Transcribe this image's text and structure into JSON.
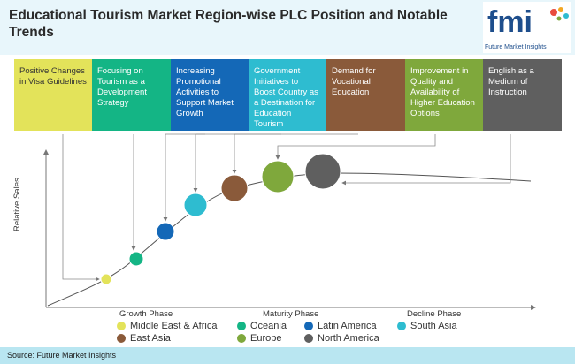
{
  "title": "Educational Tourism Market Region-wise PLC Position and Notable Trends",
  "logo": {
    "mark": "fmi",
    "tagline": "Future Market Insights"
  },
  "trends": [
    {
      "text": "Positive Changes in Visa Guidelines",
      "color": "#e3e35a",
      "text_color": "#333333"
    },
    {
      "text": "Focusing on Tourism as a Development Strategy",
      "color": "#14b585",
      "text_color": "#ffffff"
    },
    {
      "text": "Increasing Promotional Activities to Support Market Growth",
      "color": "#1468b7",
      "text_color": "#ffffff"
    },
    {
      "text": "Government Initiatives to Boost Country as a Destination for Education Tourism",
      "color": "#2ebcd0",
      "text_color": "#ffffff"
    },
    {
      "text": "Demand for Vocational Education",
      "color": "#8a5a3a",
      "text_color": "#ffffff"
    },
    {
      "text": "Improvement in Quality and Availability of Higher Education Options",
      "color": "#7fa83c",
      "text_color": "#ffffff"
    },
    {
      "text": "English as a Medium of Instruction",
      "color": "#5f5f5f",
      "text_color": "#ffffff"
    }
  ],
  "axes": {
    "y_label": "Relative Sales"
  },
  "phases": [
    "Growth Phase",
    "Maturity Phase",
    "Decline Phase"
  ],
  "legend": [
    {
      "label": "Middle East & Africa",
      "color": "#e3e35a"
    },
    {
      "label": "Oceania",
      "color": "#14b585"
    },
    {
      "label": "Latin America",
      "color": "#1468b7"
    },
    {
      "label": "South Asia",
      "color": "#2ebcd0"
    },
    {
      "label": "East Asia",
      "color": "#8a5a3a"
    },
    {
      "label": "Europe",
      "color": "#7fa83c"
    },
    {
      "label": "North America",
      "color": "#5f5f5f"
    }
  ],
  "source": "Source: Future Market Insights"
}
